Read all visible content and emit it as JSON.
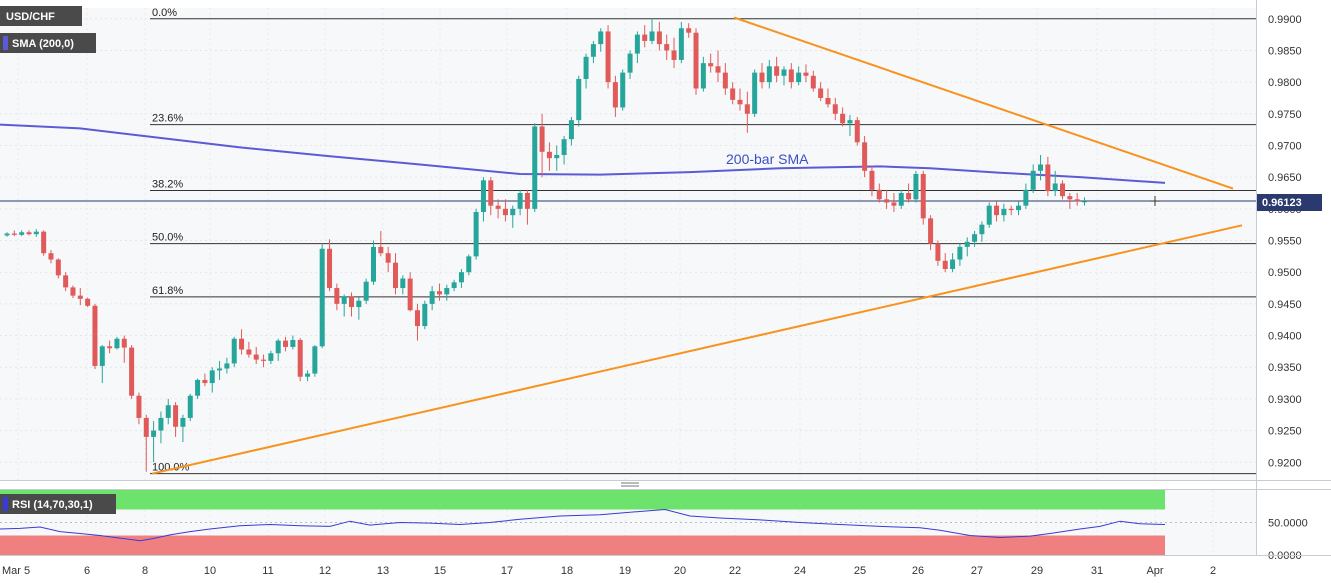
{
  "legend": {
    "symbol": "USD/CHF",
    "sma": "SMA (200,0)",
    "rsi": "RSI (14,70,30,1)"
  },
  "annotations": {
    "sma_label": "200-bar SMA"
  },
  "colors": {
    "up": "#26a69a",
    "down": "#e05a5a",
    "sma": "#5b5bd6",
    "trend": "#f7931e",
    "rsi_line": "#3a3ad6",
    "rsi_over": "#6de36d",
    "rsi_under": "#f08080",
    "badge": "#4a4a4a",
    "price_badge": "#2a3a6e"
  },
  "chart_data": {
    "type": "candlestick",
    "x_ticks": [
      "Mar 5",
      "6",
      "8",
      "10",
      "11",
      "12",
      "13",
      "15",
      "17",
      "18",
      "19",
      "20",
      "22",
      "24",
      "25",
      "26",
      "27",
      "29",
      "31",
      "Apr",
      "2"
    ],
    "y_ticks": [
      "0.9900",
      "0.9850",
      "0.9800",
      "0.9750",
      "0.9700",
      "0.9650",
      "0.9600",
      "0.9550",
      "0.9500",
      "0.9450",
      "0.9400",
      "0.9350",
      "0.9300",
      "0.9250",
      "0.9200"
    ],
    "ylim": [
      0.9172,
      0.9917
    ],
    "current_price": "0.96123",
    "current_value": 0.96123,
    "fibonacci": [
      {
        "label": "0.0%",
        "value": 0.99
      },
      {
        "label": "23.6%",
        "value": 0.9733
      },
      {
        "label": "38.2%",
        "value": 0.9629
      },
      {
        "label": "50.0%",
        "value": 0.9545
      },
      {
        "label": "61.8%",
        "value": 0.9461
      },
      {
        "label": "100.0%",
        "value": 0.9182
      }
    ],
    "trendlines": [
      {
        "name": "resistance",
        "points": [
          [
            734,
            0.9902
          ],
          [
            1233,
            0.9632
          ]
        ]
      },
      {
        "name": "support",
        "points": [
          [
            152,
            0.9182
          ],
          [
            1242,
            0.9574
          ]
        ]
      }
    ],
    "candles": [
      [
        0.9558,
        0.9563,
        0.9556,
        0.9561
      ],
      [
        0.9561,
        0.9566,
        0.9557,
        0.9559
      ],
      [
        0.9559,
        0.9566,
        0.9557,
        0.9563
      ],
      [
        0.9563,
        0.9566,
        0.9558,
        0.956
      ],
      [
        0.956,
        0.9568,
        0.9556,
        0.9564
      ],
      [
        0.9564,
        0.9566,
        0.9526,
        0.953
      ],
      [
        0.953,
        0.9535,
        0.9514,
        0.952
      ],
      [
        0.952,
        0.9522,
        0.949,
        0.9495
      ],
      [
        0.9495,
        0.95,
        0.947,
        0.9476
      ],
      [
        0.9476,
        0.9479,
        0.9459,
        0.9463
      ],
      [
        0.9463,
        0.9475,
        0.9448,
        0.9458
      ],
      [
        0.9458,
        0.946,
        0.9445,
        0.9447
      ],
      [
        0.9447,
        0.945,
        0.9347,
        0.9352
      ],
      [
        0.9352,
        0.9385,
        0.9325,
        0.9383
      ],
      [
        0.9383,
        0.9392,
        0.9372,
        0.938
      ],
      [
        0.938,
        0.9398,
        0.9378,
        0.9395
      ],
      [
        0.9395,
        0.94,
        0.9357,
        0.9381
      ],
      [
        0.9381,
        0.9385,
        0.93,
        0.9305
      ],
      [
        0.9305,
        0.931,
        0.926,
        0.927
      ],
      [
        0.927,
        0.9275,
        0.9185,
        0.924
      ],
      [
        0.924,
        0.9265,
        0.92,
        0.925
      ],
      [
        0.925,
        0.928,
        0.923,
        0.927
      ],
      [
        0.927,
        0.93,
        0.926,
        0.929
      ],
      [
        0.929,
        0.9295,
        0.924,
        0.9256
      ],
      [
        0.9256,
        0.9275,
        0.9232,
        0.927
      ],
      [
        0.927,
        0.9308,
        0.9265,
        0.9305
      ],
      [
        0.9305,
        0.9332,
        0.93,
        0.933
      ],
      [
        0.933,
        0.934,
        0.932,
        0.9325
      ],
      [
        0.9325,
        0.935,
        0.931,
        0.9345
      ],
      [
        0.9345,
        0.936,
        0.933,
        0.9348
      ],
      [
        0.9348,
        0.9365,
        0.934,
        0.9356
      ],
      [
        0.9356,
        0.9398,
        0.935,
        0.9395
      ],
      [
        0.9395,
        0.941,
        0.937,
        0.9378
      ],
      [
        0.9378,
        0.939,
        0.9365,
        0.937
      ],
      [
        0.937,
        0.9382,
        0.9355,
        0.9362
      ],
      [
        0.9362,
        0.937,
        0.935,
        0.936
      ],
      [
        0.936,
        0.9376,
        0.9355,
        0.9372
      ],
      [
        0.9372,
        0.9395,
        0.936,
        0.9392
      ],
      [
        0.9392,
        0.9398,
        0.9375,
        0.9382
      ],
      [
        0.9382,
        0.94,
        0.9378,
        0.9393
      ],
      [
        0.9393,
        0.9396,
        0.9328,
        0.9335
      ],
      [
        0.9335,
        0.9345,
        0.9328,
        0.934
      ],
      [
        0.934,
        0.9385,
        0.9335,
        0.9383
      ],
      [
        0.9383,
        0.9545,
        0.938,
        0.9537
      ],
      [
        0.9537,
        0.9552,
        0.947,
        0.9475
      ],
      [
        0.9475,
        0.9482,
        0.944,
        0.945
      ],
      [
        0.945,
        0.9465,
        0.943,
        0.9462
      ],
      [
        0.9462,
        0.9468,
        0.943,
        0.9445
      ],
      [
        0.9445,
        0.946,
        0.9425,
        0.9455
      ],
      [
        0.9455,
        0.949,
        0.945,
        0.9485
      ],
      [
        0.9485,
        0.955,
        0.948,
        0.954
      ],
      [
        0.954,
        0.9565,
        0.9525,
        0.953
      ],
      [
        0.953,
        0.954,
        0.95,
        0.9515
      ],
      [
        0.9515,
        0.953,
        0.9465,
        0.9475
      ],
      [
        0.9475,
        0.9495,
        0.9465,
        0.949
      ],
      [
        0.949,
        0.95,
        0.9438,
        0.944
      ],
      [
        0.944,
        0.945,
        0.9392,
        0.9415
      ],
      [
        0.9415,
        0.9455,
        0.941,
        0.945
      ],
      [
        0.945,
        0.9478,
        0.944,
        0.947
      ],
      [
        0.947,
        0.9482,
        0.9455,
        0.9465
      ],
      [
        0.9465,
        0.948,
        0.9455,
        0.9475
      ],
      [
        0.9475,
        0.9488,
        0.947,
        0.9484
      ],
      [
        0.9484,
        0.9505,
        0.9475,
        0.95
      ],
      [
        0.95,
        0.9528,
        0.9495,
        0.9525
      ],
      [
        0.9525,
        0.96,
        0.952,
        0.9595
      ],
      [
        0.9595,
        0.965,
        0.958,
        0.9645
      ],
      [
        0.9645,
        0.965,
        0.959,
        0.9605
      ],
      [
        0.9605,
        0.9615,
        0.9585,
        0.96
      ],
      [
        0.96,
        0.9615,
        0.958,
        0.959
      ],
      [
        0.959,
        0.9605,
        0.957,
        0.96
      ],
      [
        0.96,
        0.963,
        0.959,
        0.9625
      ],
      [
        0.9625,
        0.963,
        0.9575,
        0.96
      ],
      [
        0.96,
        0.9735,
        0.9595,
        0.973
      ],
      [
        0.973,
        0.975,
        0.965,
        0.969
      ],
      [
        0.969,
        0.9705,
        0.966,
        0.968
      ],
      [
        0.968,
        0.97,
        0.966,
        0.9685
      ],
      [
        0.9685,
        0.9715,
        0.967,
        0.971
      ],
      [
        0.971,
        0.9745,
        0.97,
        0.974
      ],
      [
        0.974,
        0.981,
        0.973,
        0.9805
      ],
      [
        0.9805,
        0.9845,
        0.979,
        0.984
      ],
      [
        0.984,
        0.9865,
        0.983,
        0.986
      ],
      [
        0.986,
        0.9885,
        0.9848,
        0.988
      ],
      [
        0.988,
        0.989,
        0.979,
        0.98
      ],
      [
        0.98,
        0.981,
        0.9745,
        0.976
      ],
      [
        0.976,
        0.982,
        0.9755,
        0.9815
      ],
      [
        0.9815,
        0.985,
        0.9805,
        0.9845
      ],
      [
        0.9845,
        0.988,
        0.983,
        0.9875
      ],
      [
        0.9875,
        0.989,
        0.9855,
        0.9865
      ],
      [
        0.9865,
        0.99,
        0.986,
        0.988
      ],
      [
        0.988,
        0.9895,
        0.985,
        0.986
      ],
      [
        0.986,
        0.9875,
        0.9835,
        0.985
      ],
      [
        0.985,
        0.987,
        0.9822,
        0.9835
      ],
      [
        0.9835,
        0.9895,
        0.983,
        0.9885
      ],
      [
        0.9885,
        0.9893,
        0.987,
        0.9878
      ],
      [
        0.9878,
        0.9885,
        0.978,
        0.979
      ],
      [
        0.979,
        0.984,
        0.9785,
        0.983
      ],
      [
        0.983,
        0.9845,
        0.9815,
        0.9825
      ],
      [
        0.9825,
        0.985,
        0.98,
        0.9815
      ],
      [
        0.9815,
        0.983,
        0.978,
        0.979
      ],
      [
        0.979,
        0.98,
        0.9765,
        0.9772
      ],
      [
        0.9772,
        0.979,
        0.9755,
        0.9765
      ],
      [
        0.9765,
        0.9785,
        0.972,
        0.975
      ],
      [
        0.975,
        0.982,
        0.9745,
        0.9815
      ],
      [
        0.9815,
        0.983,
        0.979,
        0.98
      ],
      [
        0.98,
        0.9835,
        0.979,
        0.9825
      ],
      [
        0.9825,
        0.984,
        0.98,
        0.981
      ],
      [
        0.981,
        0.9825,
        0.9795,
        0.982
      ],
      [
        0.982,
        0.983,
        0.979,
        0.98
      ],
      [
        0.98,
        0.9825,
        0.9795,
        0.9815
      ],
      [
        0.9815,
        0.9828,
        0.98,
        0.981
      ],
      [
        0.981,
        0.9818,
        0.9785,
        0.979
      ],
      [
        0.979,
        0.98,
        0.977,
        0.9775
      ],
      [
        0.9775,
        0.979,
        0.976,
        0.9765
      ],
      [
        0.9765,
        0.9775,
        0.974,
        0.975
      ],
      [
        0.975,
        0.976,
        0.973,
        0.9735
      ],
      [
        0.9735,
        0.9748,
        0.9715,
        0.974
      ],
      [
        0.974,
        0.9745,
        0.97,
        0.9705
      ],
      [
        0.9705,
        0.9715,
        0.965,
        0.966
      ],
      [
        0.966,
        0.9668,
        0.962,
        0.963
      ],
      [
        0.963,
        0.964,
        0.961,
        0.9615
      ],
      [
        0.9615,
        0.963,
        0.96,
        0.961
      ],
      [
        0.961,
        0.9625,
        0.9595,
        0.9605
      ],
      [
        0.9605,
        0.963,
        0.96,
        0.9625
      ],
      [
        0.9625,
        0.964,
        0.961,
        0.9615
      ],
      [
        0.9615,
        0.966,
        0.961,
        0.9655
      ],
      [
        0.9655,
        0.966,
        0.9575,
        0.9585
      ],
      [
        0.9585,
        0.959,
        0.9535,
        0.9545
      ],
      [
        0.9545,
        0.955,
        0.951,
        0.9518
      ],
      [
        0.9518,
        0.953,
        0.95,
        0.9505
      ],
      [
        0.9505,
        0.953,
        0.95,
        0.952
      ],
      [
        0.952,
        0.9545,
        0.951,
        0.954
      ],
      [
        0.954,
        0.9555,
        0.9525,
        0.9548
      ],
      [
        0.9548,
        0.9565,
        0.954,
        0.956
      ],
      [
        0.956,
        0.958,
        0.9548,
        0.9575
      ],
      [
        0.9575,
        0.961,
        0.957,
        0.9605
      ],
      [
        0.9605,
        0.9612,
        0.958,
        0.959
      ],
      [
        0.959,
        0.9608,
        0.958,
        0.96
      ],
      [
        0.96,
        0.9605,
        0.959,
        0.9598
      ],
      [
        0.9598,
        0.9612,
        0.959,
        0.9605
      ],
      [
        0.9605,
        0.964,
        0.96,
        0.963
      ],
      [
        0.963,
        0.967,
        0.9625,
        0.966
      ],
      [
        0.966,
        0.9685,
        0.9645,
        0.967
      ],
      [
        0.967,
        0.9682,
        0.962,
        0.9628
      ],
      [
        0.9628,
        0.966,
        0.962,
        0.964
      ],
      [
        0.964,
        0.9645,
        0.9615,
        0.962
      ],
      [
        0.962,
        0.9625,
        0.96,
        0.9615
      ],
      [
        0.9615,
        0.9625,
        0.9605,
        0.9612
      ],
      [
        0.9612,
        0.9618,
        0.9605,
        0.9612
      ]
    ],
    "sma": [
      [
        0,
        0.9733
      ],
      [
        80,
        0.9727
      ],
      [
        160,
        0.9712
      ],
      [
        240,
        0.9697
      ],
      [
        330,
        0.9683
      ],
      [
        420,
        0.967
      ],
      [
        520,
        0.9655
      ],
      [
        600,
        0.9654
      ],
      [
        690,
        0.9658
      ],
      [
        780,
        0.9664
      ],
      [
        880,
        0.9667
      ],
      [
        930,
        0.9664
      ],
      [
        1000,
        0.9657
      ],
      [
        1080,
        0.965
      ],
      [
        1165,
        0.9641
      ]
    ],
    "rsi": {
      "ylim": [
        0,
        100
      ],
      "y_ticks": [
        {
          "label": "50.0000",
          "value": 50
        },
        {
          "label": "0.0000",
          "value": 0
        }
      ],
      "overbought": 70,
      "oversold": 30,
      "values": [
        [
          0,
          40
        ],
        [
          20,
          41
        ],
        [
          40,
          43
        ],
        [
          60,
          36
        ],
        [
          80,
          33
        ],
        [
          100,
          30
        ],
        [
          120,
          26
        ],
        [
          140,
          22
        ],
        [
          152,
          25
        ],
        [
          170,
          31
        ],
        [
          190,
          36
        ],
        [
          210,
          40
        ],
        [
          240,
          45
        ],
        [
          270,
          47
        ],
        [
          300,
          45
        ],
        [
          330,
          44
        ],
        [
          350,
          52
        ],
        [
          370,
          46
        ],
        [
          400,
          50
        ],
        [
          430,
          49
        ],
        [
          460,
          47
        ],
        [
          490,
          50
        ],
        [
          520,
          55
        ],
        [
          560,
          60
        ],
        [
          600,
          62
        ],
        [
          640,
          67
        ],
        [
          665,
          70
        ],
        [
          690,
          60
        ],
        [
          720,
          57
        ],
        [
          760,
          54
        ],
        [
          800,
          50
        ],
        [
          840,
          47
        ],
        [
          880,
          44
        ],
        [
          920,
          42
        ],
        [
          940,
          38
        ],
        [
          970,
          30
        ],
        [
          1000,
          27
        ],
        [
          1030,
          29
        ],
        [
          1050,
          33
        ],
        [
          1080,
          40
        ],
        [
          1100,
          44
        ],
        [
          1120,
          52
        ],
        [
          1140,
          48
        ],
        [
          1165,
          47
        ]
      ]
    }
  }
}
